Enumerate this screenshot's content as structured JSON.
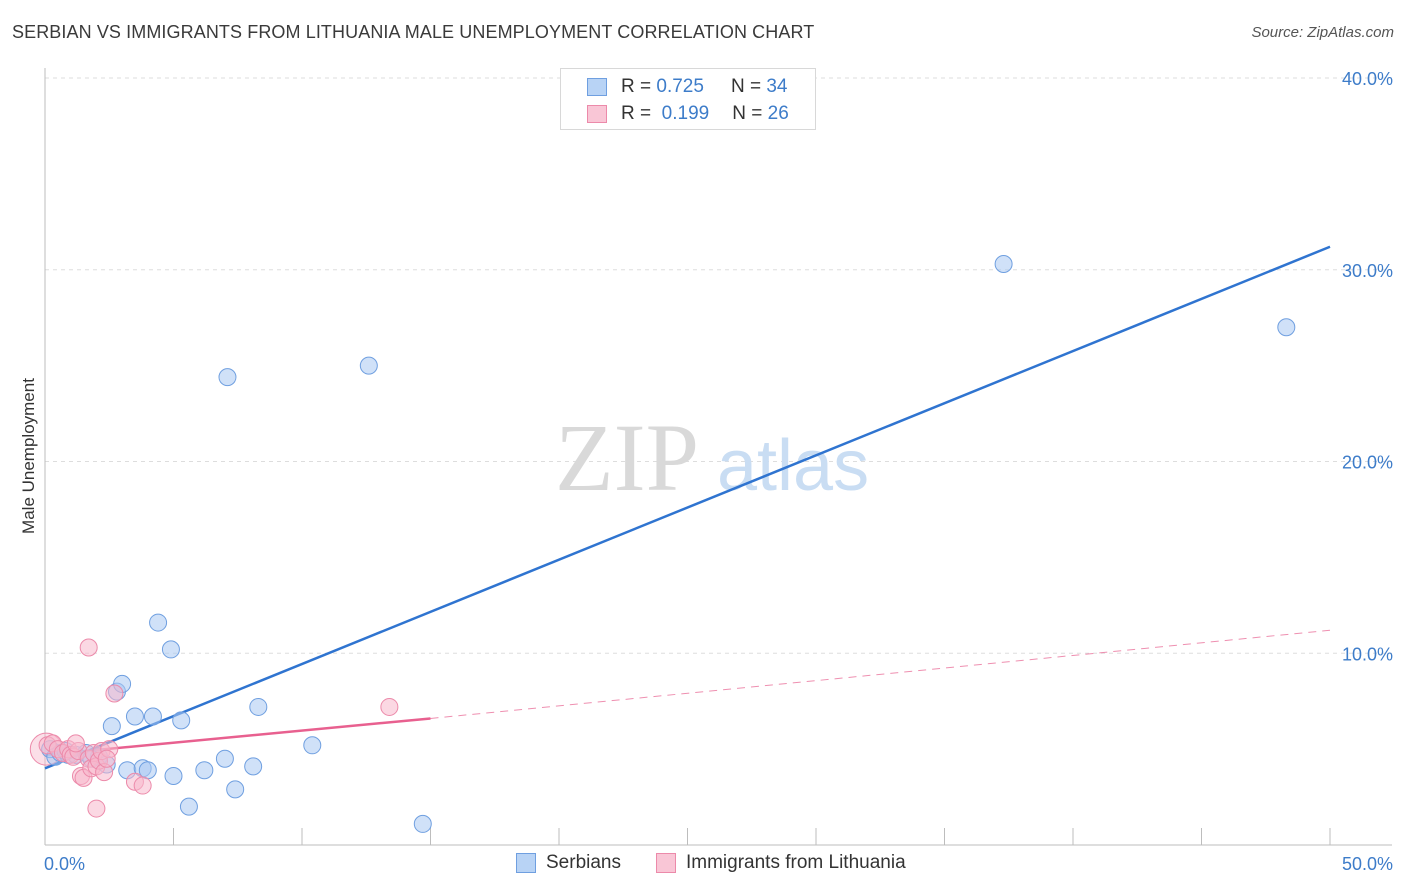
{
  "header": {
    "title": "SERBIAN VS IMMIGRANTS FROM LITHUANIA MALE UNEMPLOYMENT CORRELATION CHART",
    "source": "Source: ZipAtlas.com"
  },
  "watermark": {
    "zip": "ZIP",
    "atlas": "atlas"
  },
  "legend_top": [
    {
      "r_label": "R =",
      "r_value": "0.725",
      "n_label": "N =",
      "n_value": "34"
    },
    {
      "r_label": "R =",
      "r_value": "0.199",
      "n_label": "N =",
      "n_value": "26"
    }
  ],
  "colors": {
    "serbians_fill": "#a9c9f2",
    "serbians_stroke": "#6f9fe0",
    "serbians_line": "#2f74d0",
    "lithuania_fill": "#f7b8cc",
    "lithuania_stroke": "#ec8aaa",
    "lithuania_line": "#e8608f",
    "tick_color": "#3d7cc9",
    "grid": "#dddddd"
  },
  "chart_data": {
    "type": "scatter",
    "title": "SERBIAN VS IMMIGRANTS FROM LITHUANIA MALE UNEMPLOYMENT CORRELATION CHART",
    "xlabel": "",
    "ylabel": "Male Unemployment",
    "xlim": [
      0,
      50
    ],
    "ylim": [
      0,
      40
    ],
    "x_tick_labels": [
      "0.0%",
      "50.0%"
    ],
    "y_ticks": [
      10,
      20,
      30,
      40
    ],
    "y_tick_labels": [
      "10.0%",
      "20.0%",
      "30.0%",
      "40.0%"
    ],
    "grid": true,
    "legend_position": "top-center",
    "series": [
      {
        "name": "Serbians",
        "R": 0.725,
        "N": 34,
        "trend": {
          "x0": 0,
          "y0": 4.0,
          "x1": 50,
          "y1": 31.2,
          "style": "solid"
        },
        "points": [
          [
            0.2,
            5.0
          ],
          [
            0.4,
            4.6
          ],
          [
            0.6,
            4.8
          ],
          [
            0.9,
            4.7
          ],
          [
            1.2,
            4.7
          ],
          [
            1.6,
            4.8
          ],
          [
            2.1,
            4.6
          ],
          [
            2.6,
            6.2
          ],
          [
            2.4,
            4.2
          ],
          [
            2.8,
            8.0
          ],
          [
            3.0,
            8.4
          ],
          [
            3.5,
            6.7
          ],
          [
            3.2,
            3.9
          ],
          [
            3.8,
            4.0
          ],
          [
            4.0,
            3.9
          ],
          [
            4.2,
            6.7
          ],
          [
            4.4,
            11.6
          ],
          [
            4.9,
            10.2
          ],
          [
            5.0,
            3.6
          ],
          [
            5.3,
            6.5
          ],
          [
            5.6,
            2.0
          ],
          [
            6.2,
            3.9
          ],
          [
            7.0,
            4.5
          ],
          [
            7.4,
            2.9
          ],
          [
            8.1,
            4.1
          ],
          [
            8.3,
            7.2
          ],
          [
            10.4,
            5.2
          ],
          [
            14.7,
            1.1
          ],
          [
            7.1,
            24.4
          ],
          [
            12.6,
            25.0
          ],
          [
            37.3,
            30.3
          ],
          [
            48.3,
            27.0
          ],
          [
            0.8,
            4.9
          ],
          [
            1.8,
            4.5
          ]
        ]
      },
      {
        "name": "Immigrants from Lithuania",
        "R": 0.199,
        "N": 26,
        "trend": {
          "x0": 0,
          "y0": 4.7,
          "x1": 15.0,
          "y1": 6.6,
          "x2": 50,
          "y2": 11.2,
          "style": "solid-then-dashed"
        },
        "points": [
          [
            0.1,
            5.2
          ],
          [
            0.3,
            5.3
          ],
          [
            0.5,
            5.0
          ],
          [
            0.7,
            4.8
          ],
          [
            0.9,
            5.0
          ],
          [
            1.0,
            4.7
          ],
          [
            1.1,
            4.6
          ],
          [
            1.3,
            4.9
          ],
          [
            1.4,
            3.6
          ],
          [
            1.5,
            3.5
          ],
          [
            1.7,
            4.5
          ],
          [
            1.8,
            4.0
          ],
          [
            1.9,
            4.8
          ],
          [
            2.0,
            4.1
          ],
          [
            2.1,
            4.4
          ],
          [
            2.2,
            4.9
          ],
          [
            2.3,
            3.8
          ],
          [
            2.5,
            5.0
          ],
          [
            2.7,
            7.9
          ],
          [
            1.7,
            10.3
          ],
          [
            2.4,
            4.5
          ],
          [
            3.5,
            3.3
          ],
          [
            3.8,
            3.1
          ],
          [
            2.0,
            1.9
          ],
          [
            13.4,
            7.2
          ],
          [
            1.2,
            5.3
          ]
        ]
      }
    ],
    "bottom_legend": [
      "Serbians",
      "Immigrants from Lithuania"
    ]
  }
}
